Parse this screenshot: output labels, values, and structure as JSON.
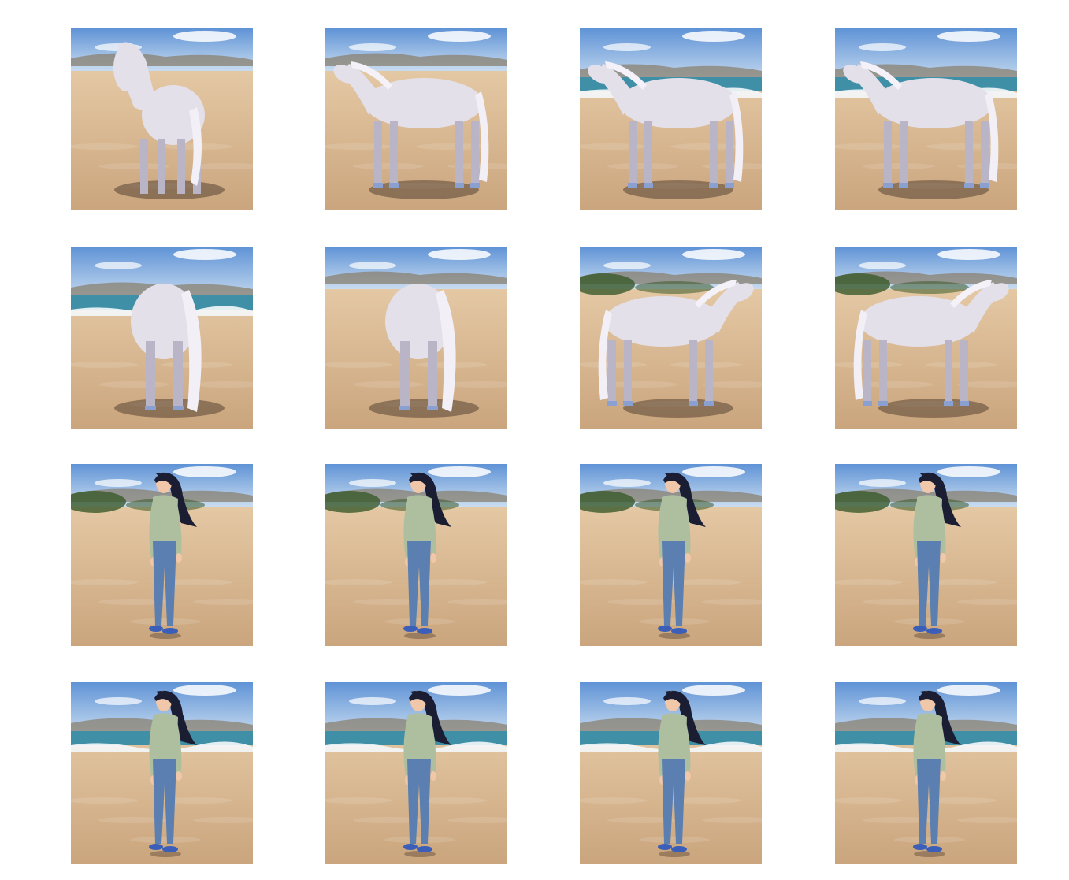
{
  "gallery": {
    "rows": [
      {
        "subject": "horse",
        "tiles": [
          {
            "view": "front-three-quarter-left",
            "setting": "beach"
          },
          {
            "view": "side-left",
            "setting": "beach"
          },
          {
            "view": "side-left",
            "setting": "beach-shoreline"
          },
          {
            "view": "side-left-rear",
            "setting": "beach-shoreline"
          }
        ]
      },
      {
        "subject": "horse",
        "tiles": [
          {
            "view": "rear",
            "setting": "beach-shoreline"
          },
          {
            "view": "rear",
            "setting": "beach"
          },
          {
            "view": "side-right",
            "setting": "beach-trees"
          },
          {
            "view": "side-right",
            "setting": "beach-shrubs"
          }
        ]
      },
      {
        "subject": "woman",
        "tiles": [
          {
            "view": "side-left",
            "setting": "beach-dunes"
          },
          {
            "view": "side-left",
            "setting": "beach-dunes"
          },
          {
            "view": "side-left",
            "setting": "beach-dunes"
          },
          {
            "view": "side-left",
            "setting": "beach-dunes"
          }
        ]
      },
      {
        "subject": "woman",
        "tiles": [
          {
            "view": "three-quarter-left",
            "setting": "beach-shoreline"
          },
          {
            "view": "three-quarter-left",
            "setting": "beach-shoreline"
          },
          {
            "view": "three-quarter-left",
            "setting": "beach-shoreline"
          },
          {
            "view": "three-quarter-left",
            "setting": "beach-shoreline"
          }
        ]
      }
    ],
    "colors": {
      "sky_top": "#5f93d6",
      "sky_bottom": "#c9dcf0",
      "mountain": "#8a8070",
      "sea": "#3f8fa6",
      "surf": "#f4f8fb",
      "sand_light": "#ecd3b0",
      "sand_dark": "#caa57d",
      "horse": "#e3e0ea",
      "horse_shade": "#b9b4c6",
      "hoof": "#8aa0d0",
      "shadow": "#3b2c22",
      "shirt": "#aebfa0",
      "jeans": "#5b7fb0",
      "hair": "#1b1e33",
      "skin": "#f0c7a8",
      "shoe": "#3b5fb8",
      "tree": "#3a5a2a"
    }
  }
}
